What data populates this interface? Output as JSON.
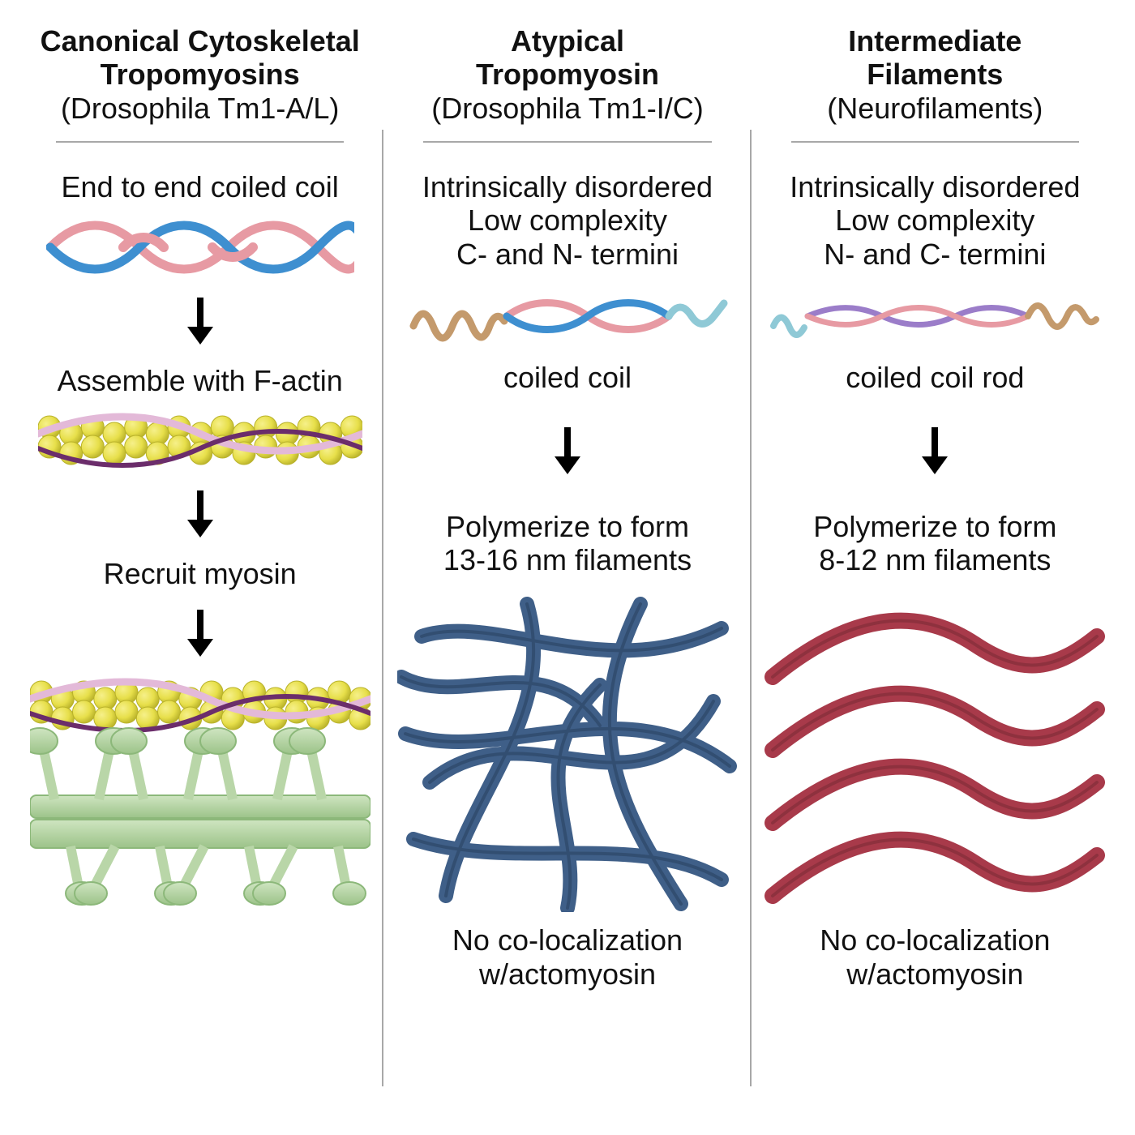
{
  "colors": {
    "text": "#111111",
    "divider": "#a8a8a8",
    "arrow": "#000000",
    "coil_blue": "#3e8fd0",
    "coil_pink": "#e79aa3",
    "coil_purple": "#9b7dc9",
    "coil_tan": "#c49a6c",
    "coil_cyan": "#8fc9d6",
    "actin_yellow": "#e7df4a",
    "actin_yellow_dark": "#b9b22a",
    "actin_wrap": "#e3b9d8",
    "actin_wrap_dark": "#6b2d6b",
    "myosin_green": "#b9d6a8",
    "myosin_green_dark": "#8cb87a",
    "mesh_blue": "#3f5f88",
    "mesh_blue_edge": "#2b4363",
    "if_red": "#a83a4a",
    "if_red_edge": "#7a2a36",
    "background": "#ffffff"
  },
  "fontsize": {
    "title": 36,
    "body": 36
  },
  "columns": [
    {
      "key": "canonical",
      "title_bold": "Canonical Cytoskeletal\nTropomyosins",
      "title_sub": "(Drosophila Tm1-A/L)",
      "c1": "End to end coiled coil",
      "c2": "Assemble with F-actin",
      "c3": "Recruit myosin"
    },
    {
      "key": "atypical",
      "title_bold": "Atypical\nTropomyosin",
      "title_sub": "(Drosophila Tm1-I/C)",
      "desc1": "Intrinsically disordered\nLow complexity\nC- and N- termini",
      "coil_label": "coiled coil",
      "poly": "Polymerize to form\n13-16 nm filaments",
      "footer": "No co-localization\nw/actomyosin",
      "filament_nm": "13-16"
    },
    {
      "key": "intermediate",
      "title_bold": "Intermediate\nFilaments",
      "title_sub": "(Neurofilaments)",
      "desc1": "Intrinsically disordered\nLow complexity\nN- and C- termini",
      "coil_label": "coiled coil rod",
      "poly": "Polymerize to form\n8-12 nm filaments",
      "footer": "No co-localization\nw/actomyosin",
      "filament_nm": "8-12"
    }
  ]
}
